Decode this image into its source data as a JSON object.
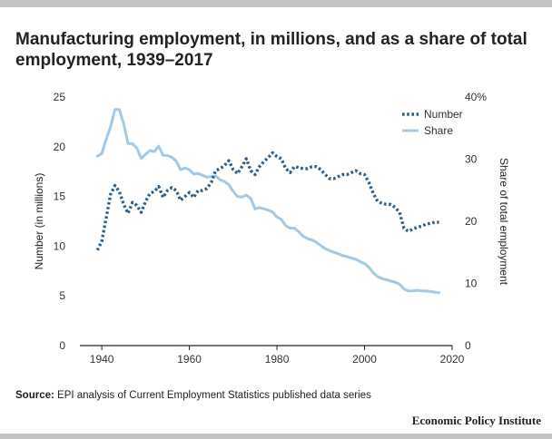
{
  "title": "Manufacturing employment, in millions, and as a share of total employment, 1939–2017",
  "source_label": "Source:",
  "source_text": "EPI analysis of Current Employment Statistics published data series",
  "brand": "Economic Policy Institute",
  "colors": {
    "number": "#2e5f8a",
    "share": "#a3c9e6",
    "axis": "#222222",
    "text": "#333333",
    "bar": "#c4c4c4"
  },
  "chart_data": {
    "type": "line",
    "xlim": [
      1935,
      2020
    ],
    "x_ticks": [
      1940,
      1960,
      1980,
      2000,
      2020
    ],
    "ylabel": "Number (in millions)",
    "ylim": [
      0,
      25
    ],
    "y_ticks": [
      0,
      5,
      10,
      15,
      20,
      25
    ],
    "y2label": "Share of total employment",
    "y2lim": [
      0,
      40
    ],
    "y2_ticks": [
      0,
      10,
      20,
      30,
      40
    ],
    "y2_tick_labels": [
      "0",
      "10",
      "20",
      "30",
      "40%"
    ],
    "grid": false,
    "legend": {
      "position": "top-right"
    },
    "x": [
      1939,
      1940,
      1941,
      1942,
      1943,
      1944,
      1945,
      1946,
      1947,
      1948,
      1949,
      1950,
      1951,
      1952,
      1953,
      1954,
      1955,
      1956,
      1957,
      1958,
      1959,
      1960,
      1961,
      1962,
      1963,
      1964,
      1965,
      1966,
      1967,
      1968,
      1969,
      1970,
      1971,
      1972,
      1973,
      1974,
      1975,
      1976,
      1977,
      1978,
      1979,
      1980,
      1981,
      1982,
      1983,
      1984,
      1985,
      1986,
      1987,
      1988,
      1989,
      1990,
      1991,
      1992,
      1993,
      1994,
      1995,
      1996,
      1997,
      1998,
      1999,
      2000,
      2001,
      2002,
      2003,
      2004,
      2005,
      2006,
      2007,
      2008,
      2009,
      2010,
      2011,
      2012,
      2013,
      2014,
      2015,
      2016,
      2017
    ],
    "series": [
      {
        "name": "Number",
        "axis": "left",
        "style": "dotted",
        "values": [
          9.6,
          10.5,
          12.8,
          15.2,
          16.1,
          15.5,
          14.2,
          13.3,
          14.4,
          14.1,
          13.4,
          14.5,
          15.3,
          15.5,
          16.0,
          14.9,
          15.6,
          15.9,
          15.6,
          14.6,
          15.0,
          15.4,
          14.9,
          15.6,
          15.6,
          15.8,
          16.4,
          17.6,
          17.8,
          18.1,
          18.6,
          17.7,
          17.3,
          18.0,
          18.8,
          17.6,
          17.2,
          18.0,
          18.5,
          18.9,
          19.4,
          19.0,
          18.8,
          17.8,
          17.4,
          18.0,
          17.9,
          17.8,
          17.8,
          18.0,
          18.0,
          17.7,
          17.2,
          16.8,
          16.8,
          17.0,
          17.2,
          17.2,
          17.4,
          17.6,
          17.3,
          17.2,
          16.4,
          15.3,
          14.5,
          14.3,
          14.2,
          14.2,
          13.9,
          13.4,
          11.8,
          11.5,
          11.7,
          11.9,
          12.0,
          12.2,
          12.3,
          12.4,
          12.4
        ]
      },
      {
        "name": "Share",
        "axis": "right",
        "style": "solid",
        "values": [
          30.5,
          30.9,
          33.2,
          35.2,
          38.0,
          38.0,
          35.7,
          32.5,
          32.5,
          31.8,
          30.1,
          30.8,
          31.4,
          31.2,
          32.1,
          30.6,
          30.6,
          30.3,
          29.7,
          28.3,
          28.6,
          28.3,
          27.6,
          27.7,
          27.4,
          27.1,
          27.2,
          27.3,
          26.7,
          26.4,
          25.9,
          24.8,
          24.0,
          23.9,
          24.2,
          23.7,
          22.0,
          22.2,
          22.0,
          21.8,
          21.5,
          20.7,
          20.3,
          19.3,
          18.9,
          18.9,
          18.3,
          17.6,
          17.2,
          17.0,
          16.6,
          16.1,
          15.6,
          15.3,
          15.0,
          14.8,
          14.5,
          14.3,
          14.1,
          13.9,
          13.5,
          13.2,
          12.6,
          11.7,
          11.1,
          10.8,
          10.6,
          10.4,
          10.2,
          9.9,
          9.1,
          8.8,
          8.8,
          8.9,
          8.8,
          8.8,
          8.7,
          8.6,
          8.5
        ]
      }
    ]
  }
}
